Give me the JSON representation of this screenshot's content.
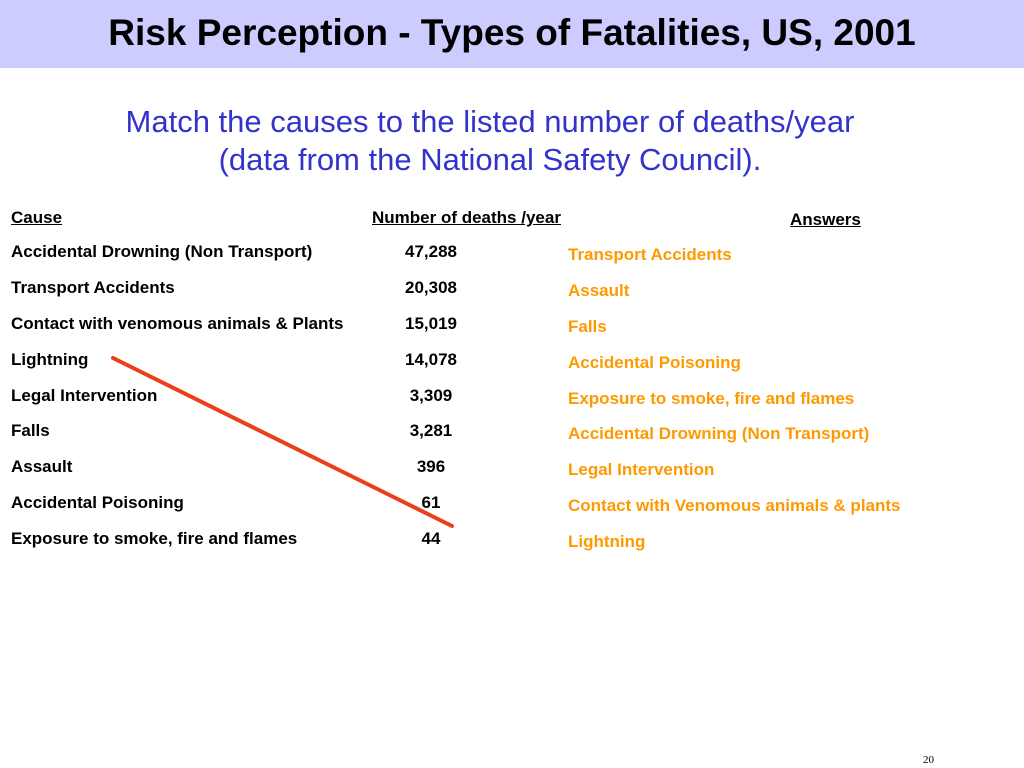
{
  "slide": {
    "title": "Risk Perception - Types of Fatalities, US, 2001",
    "subtitle_line1": "Match the causes to the listed number of deaths/year",
    "subtitle_line2": "(data from the National Safety Council).",
    "page_number": "20",
    "colors": {
      "title_bar": "#ccccff",
      "subtitle": "#3333cc",
      "answers": "#ff9900",
      "match_line": "#e8401c"
    }
  },
  "table": {
    "cause_header": "Cause",
    "deaths_header": "Number of deaths /year",
    "rows": [
      {
        "cause": "Accidental Drowning (Non Transport)",
        "deaths": "47,288"
      },
      {
        "cause": "Transport Accidents",
        "deaths": "20,308"
      },
      {
        "cause": "Contact with venomous animals & Plants",
        "deaths": "15,019"
      },
      {
        "cause": "Lightning",
        "deaths": "14,078"
      },
      {
        "cause": "Legal Intervention",
        "deaths": "3,309"
      },
      {
        "cause": "Falls",
        "deaths": "3,281"
      },
      {
        "cause": "Assault",
        "deaths": "396"
      },
      {
        "cause": "Accidental Poisoning",
        "deaths": "61"
      },
      {
        "cause": "Exposure to smoke, fire and flames",
        "deaths": "44"
      }
    ]
  },
  "answers": {
    "header": "Answers",
    "items": [
      "Transport Accidents",
      "Assault",
      "Falls",
      "Accidental Poisoning",
      "Exposure to smoke, fire and flames",
      "Accidental Drowning (Non Transport)",
      "Legal Intervention",
      "Contact with Venomous animals & plants",
      "Lightning"
    ]
  },
  "match_line": {
    "from_cause": "Lightning",
    "to_deaths": "44"
  }
}
